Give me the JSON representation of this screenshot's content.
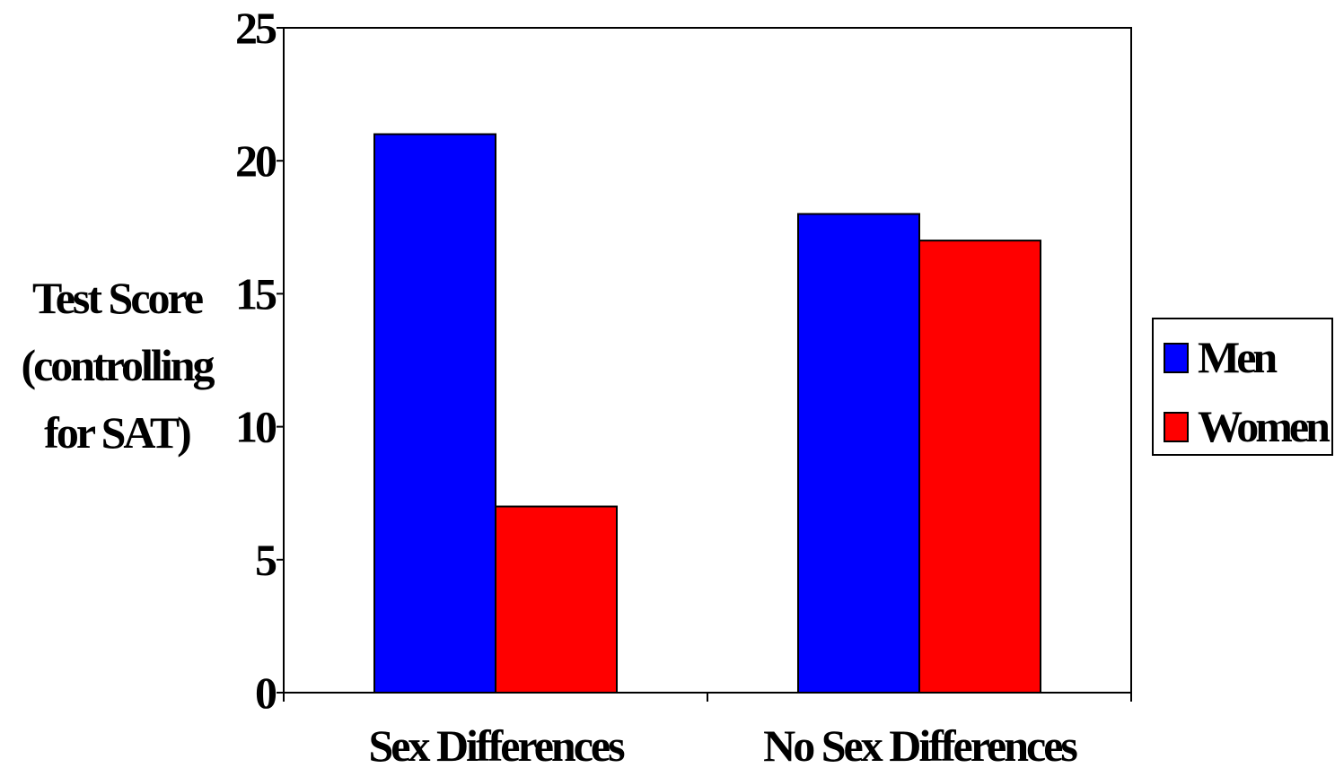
{
  "chart_data": {
    "type": "bar",
    "title": "",
    "ylabel_lines": [
      "Test Score",
      "(controlling",
      "for SAT)"
    ],
    "xlabel": "",
    "categories": [
      "Sex Differences",
      "No Sex Differences"
    ],
    "series": [
      {
        "name": "Men",
        "color": "#0000FF",
        "values": [
          21,
          18
        ]
      },
      {
        "name": "Women",
        "color": "#FF0000",
        "values": [
          7,
          17
        ]
      }
    ],
    "ylim": [
      0,
      25
    ],
    "yticks": [
      "0",
      "5",
      "10",
      "15",
      "20",
      "25"
    ],
    "grid": false,
    "legend_position": "right"
  }
}
